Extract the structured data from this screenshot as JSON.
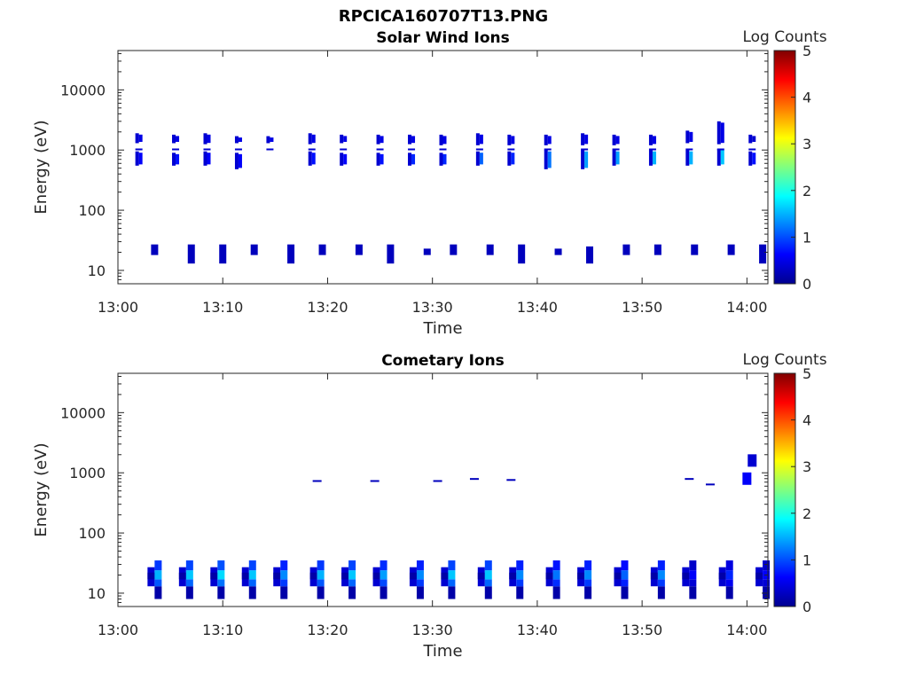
{
  "figure": {
    "title": "RPCICA160707T13.PNG"
  },
  "colors": {
    "colormap": "jet",
    "axis": "#262626",
    "background": "#ffffff"
  },
  "chart_data": [
    {
      "type": "heatmap",
      "title": "Solar Wind Ions",
      "xlabel": "Time",
      "ylabel": "Energy (eV)",
      "xlim": [
        "13:00",
        "14:02"
      ],
      "ylim": [
        6,
        45000
      ],
      "yscale": "log",
      "x_ticks": [
        "13:00",
        "13:10",
        "13:20",
        "13:30",
        "13:40",
        "13:50",
        "14:00"
      ],
      "y_ticks": [
        "10",
        "100",
        "1000",
        "10000"
      ],
      "colorbar": {
        "label": "Log Counts",
        "range": [
          0,
          5
        ],
        "ticks": [
          "0",
          "1",
          "2",
          "3",
          "4",
          "5"
        ]
      },
      "scans": [
        {
          "t": "13:02",
          "blocks": [
            [
              1300,
              1900,
              0.5
            ],
            [
              550,
              950,
              0.6
            ]
          ],
          "low": null
        },
        {
          "t": "13:03.5",
          "blocks": [],
          "low": [
            18,
            27,
            0.3
          ]
        },
        {
          "t": "13:05.5",
          "blocks": [
            [
              1300,
              1800,
              0.5
            ],
            [
              550,
              900,
              0.7
            ]
          ],
          "low": null
        },
        {
          "t": "13:07",
          "blocks": [],
          "low": [
            13,
            27,
            0.3
          ]
        },
        {
          "t": "13:08.5",
          "blocks": [
            [
              1250,
              1900,
              0.5
            ],
            [
              550,
              950,
              0.6
            ]
          ],
          "low": null
        },
        {
          "t": "13:10",
          "blocks": [],
          "low": [
            13,
            27,
            0.3
          ]
        },
        {
          "t": "13:11.5",
          "blocks": [
            [
              1300,
              1700,
              0.5
            ],
            [
              480,
              900,
              0.6
            ]
          ],
          "low": null
        },
        {
          "t": "13:13",
          "blocks": [],
          "low": [
            18,
            27,
            0.3
          ]
        },
        {
          "t": "13:14.5",
          "blocks": [
            [
              1300,
              1700,
              0.5
            ]
          ],
          "low": null
        },
        {
          "t": "13:16.5",
          "blocks": [],
          "low": [
            13,
            27,
            0.3
          ]
        },
        {
          "t": "13:18.5",
          "blocks": [
            [
              1250,
              1900,
              0.5
            ],
            [
              550,
              950,
              0.7
            ]
          ],
          "low": null
        },
        {
          "t": "13:19.5",
          "blocks": [],
          "low": [
            18,
            27,
            0.3
          ]
        },
        {
          "t": "13:21.5",
          "blocks": [
            [
              1300,
              1800,
              0.5
            ],
            [
              550,
              900,
              0.6
            ]
          ],
          "low": null
        },
        {
          "t": "13:23",
          "blocks": [],
          "low": [
            18,
            27,
            0.3
          ]
        },
        {
          "t": "13:25",
          "blocks": [
            [
              1250,
              1800,
              0.5
            ],
            [
              550,
              900,
              0.7
            ]
          ],
          "low": null
        },
        {
          "t": "13:26",
          "blocks": [],
          "low": [
            13,
            27,
            0.3
          ]
        },
        {
          "t": "13:28",
          "blocks": [
            [
              1250,
              1800,
              0.5
            ],
            [
              550,
              900,
              0.8
            ]
          ],
          "low": null
        },
        {
          "t": "13:29.5",
          "blocks": [],
          "low": [
            18,
            23,
            0.3
          ]
        },
        {
          "t": "13:31",
          "blocks": [
            [
              1200,
              1800,
              0.5
            ],
            [
              550,
              900,
              0.8
            ]
          ],
          "low": null
        },
        {
          "t": "13:32",
          "blocks": [],
          "low": [
            18,
            27,
            0.3
          ]
        },
        {
          "t": "13:34.5",
          "blocks": [
            [
              1200,
              1900,
              0.5
            ],
            [
              550,
              950,
              1.1
            ]
          ],
          "low": null
        },
        {
          "t": "13:35.5",
          "blocks": [],
          "low": [
            18,
            27,
            0.3
          ]
        },
        {
          "t": "13:37.5",
          "blocks": [
            [
              1200,
              1800,
              0.5
            ],
            [
              550,
              950,
              0.8
            ]
          ],
          "low": null
        },
        {
          "t": "13:38.5",
          "blocks": [],
          "low": [
            13,
            27,
            0.3
          ]
        },
        {
          "t": "13:41",
          "blocks": [
            [
              1200,
              1800,
              0.5
            ],
            [
              480,
              1000,
              1.2
            ]
          ],
          "low": null
        },
        {
          "t": "13:42",
          "blocks": [],
          "low": [
            18,
            23,
            0.3
          ]
        },
        {
          "t": "13:44.5",
          "blocks": [
            [
              1200,
              1900,
              0.5
            ],
            [
              480,
              1000,
              1.4
            ]
          ],
          "low": null
        },
        {
          "t": "13:45",
          "blocks": [],
          "low": [
            13,
            25,
            0.3
          ]
        },
        {
          "t": "13:47.5",
          "blocks": [
            [
              1200,
              1800,
              0.5
            ],
            [
              550,
              1000,
              1.4
            ]
          ],
          "low": null
        },
        {
          "t": "13:48.5",
          "blocks": [],
          "low": [
            18,
            27,
            0.3
          ]
        },
        {
          "t": "13:51",
          "blocks": [
            [
              1200,
              1800,
              0.5
            ],
            [
              550,
              1000,
              1.5
            ]
          ],
          "low": null
        },
        {
          "t": "13:51.5",
          "blocks": [],
          "low": [
            18,
            27,
            0.3
          ]
        },
        {
          "t": "13:54.5",
          "blocks": [
            [
              1300,
              2100,
              0.5
            ],
            [
              550,
              1000,
              1.5
            ]
          ],
          "low": null
        },
        {
          "t": "13:55",
          "blocks": [],
          "low": [
            18,
            27,
            0.3
          ]
        },
        {
          "t": "13:57.5",
          "blocks": [
            [
              1250,
              3000,
              0.5
            ],
            [
              550,
              1050,
              1.6
            ]
          ],
          "low": null
        },
        {
          "t": "13:58.5",
          "blocks": [],
          "low": [
            18,
            27,
            0.3
          ]
        },
        {
          "t": "14:00.5",
          "blocks": [
            [
              1300,
              1800,
              0.4
            ],
            [
              550,
              950,
              0.7
            ]
          ],
          "low": null
        },
        {
          "t": "14:01.5",
          "blocks": [],
          "low": [
            13,
            27,
            0.3
          ]
        }
      ]
    },
    {
      "type": "heatmap",
      "title": "Cometary Ions",
      "xlabel": "Time",
      "ylabel": "Energy (eV)",
      "xlim": [
        "13:00",
        "14:02"
      ],
      "ylim": [
        6,
        45000
      ],
      "yscale": "log",
      "x_ticks": [
        "13:00",
        "13:10",
        "13:20",
        "13:30",
        "13:40",
        "13:50",
        "14:00"
      ],
      "y_ticks": [
        "10",
        "100",
        "1000",
        "10000"
      ],
      "colorbar": {
        "label": "Log Counts",
        "range": [
          0,
          5
        ],
        "ticks": [
          "0",
          "1",
          "2",
          "3",
          "4",
          "5"
        ]
      },
      "scans": [
        {
          "t": "13:03.5",
          "peak": 1.5
        },
        {
          "t": "13:06.5",
          "peak": 1.6
        },
        {
          "t": "13:09.5",
          "peak": 1.7
        },
        {
          "t": "13:12.5",
          "peak": 1.6
        },
        {
          "t": "13:15.5",
          "peak": 1.3
        },
        {
          "t": "13:19",
          "peak": 1.5
        },
        {
          "t": "13:22",
          "peak": 1.6
        },
        {
          "t": "13:25",
          "peak": 1.4
        },
        {
          "t": "13:28.5",
          "peak": 1.3
        },
        {
          "t": "13:31.5",
          "peak": 1.6
        },
        {
          "t": "13:35",
          "peak": 1.6
        },
        {
          "t": "13:38",
          "peak": 1.3
        },
        {
          "t": "13:41.5",
          "peak": 1.2
        },
        {
          "t": "13:44.5",
          "peak": 1.3
        },
        {
          "t": "13:48",
          "peak": 1.1
        },
        {
          "t": "13:51.5",
          "peak": 1.3
        },
        {
          "t": "13:54.5",
          "peak": 0.6
        },
        {
          "t": "13:58",
          "peak": 0.8
        },
        {
          "t": "14:01.5",
          "peak": 0.6
        }
      ],
      "high_energy_marks": [
        {
          "t": "13:19",
          "e": 730
        },
        {
          "t": "13:24.5",
          "e": 730
        },
        {
          "t": "13:30.5",
          "e": 730
        },
        {
          "t": "13:34",
          "e": 790
        },
        {
          "t": "13:37.5",
          "e": 760
        },
        {
          "t": "13:54.5",
          "e": 790
        },
        {
          "t": "13:56.5",
          "e": 640
        },
        {
          "t": "14:00",
          "e": 800,
          "v": 0.6
        },
        {
          "t": "14:00.5",
          "e": 1600,
          "v": 0.4
        }
      ]
    }
  ]
}
